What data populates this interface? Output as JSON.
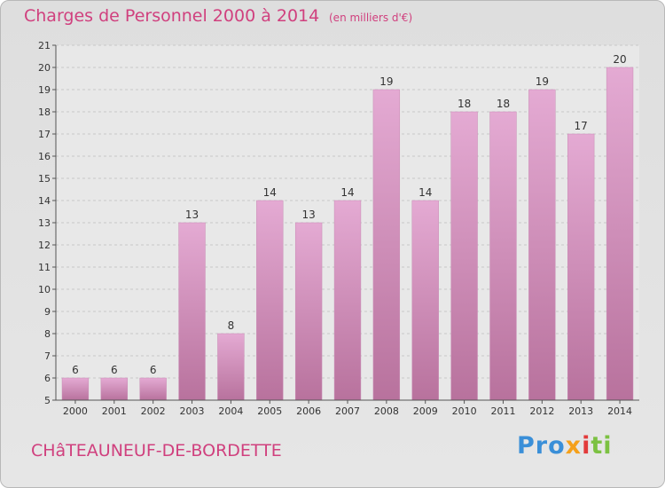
{
  "page": {
    "title": "Charges de Personnel 2000 à 2014",
    "subtitle": "(en milliers d'€)",
    "town": "CHâTEAUNEUF-DE-BORDETTE",
    "logo": [
      "Pro",
      "x",
      "i",
      "ti"
    ]
  },
  "chart_data": {
    "type": "bar",
    "title": "Charges de Personnel 2000 à 2014",
    "subtitle": "(en milliers d'€)",
    "categories": [
      "2000",
      "2001",
      "2002",
      "2003",
      "2004",
      "2005",
      "2006",
      "2007",
      "2008",
      "2009",
      "2010",
      "2011",
      "2012",
      "2013",
      "2014"
    ],
    "values": [
      6,
      6,
      6,
      13,
      8,
      14,
      13,
      14,
      19,
      14,
      18,
      18,
      19,
      17,
      20
    ],
    "ylim": [
      5,
      21
    ],
    "yticks": [
      5,
      6,
      7,
      8,
      9,
      10,
      11,
      12,
      13,
      14,
      15,
      16,
      17,
      18,
      19,
      20,
      21
    ],
    "grid": true,
    "bar_color": "#d9a0c8",
    "bar_color_dark": "#b8729d"
  }
}
